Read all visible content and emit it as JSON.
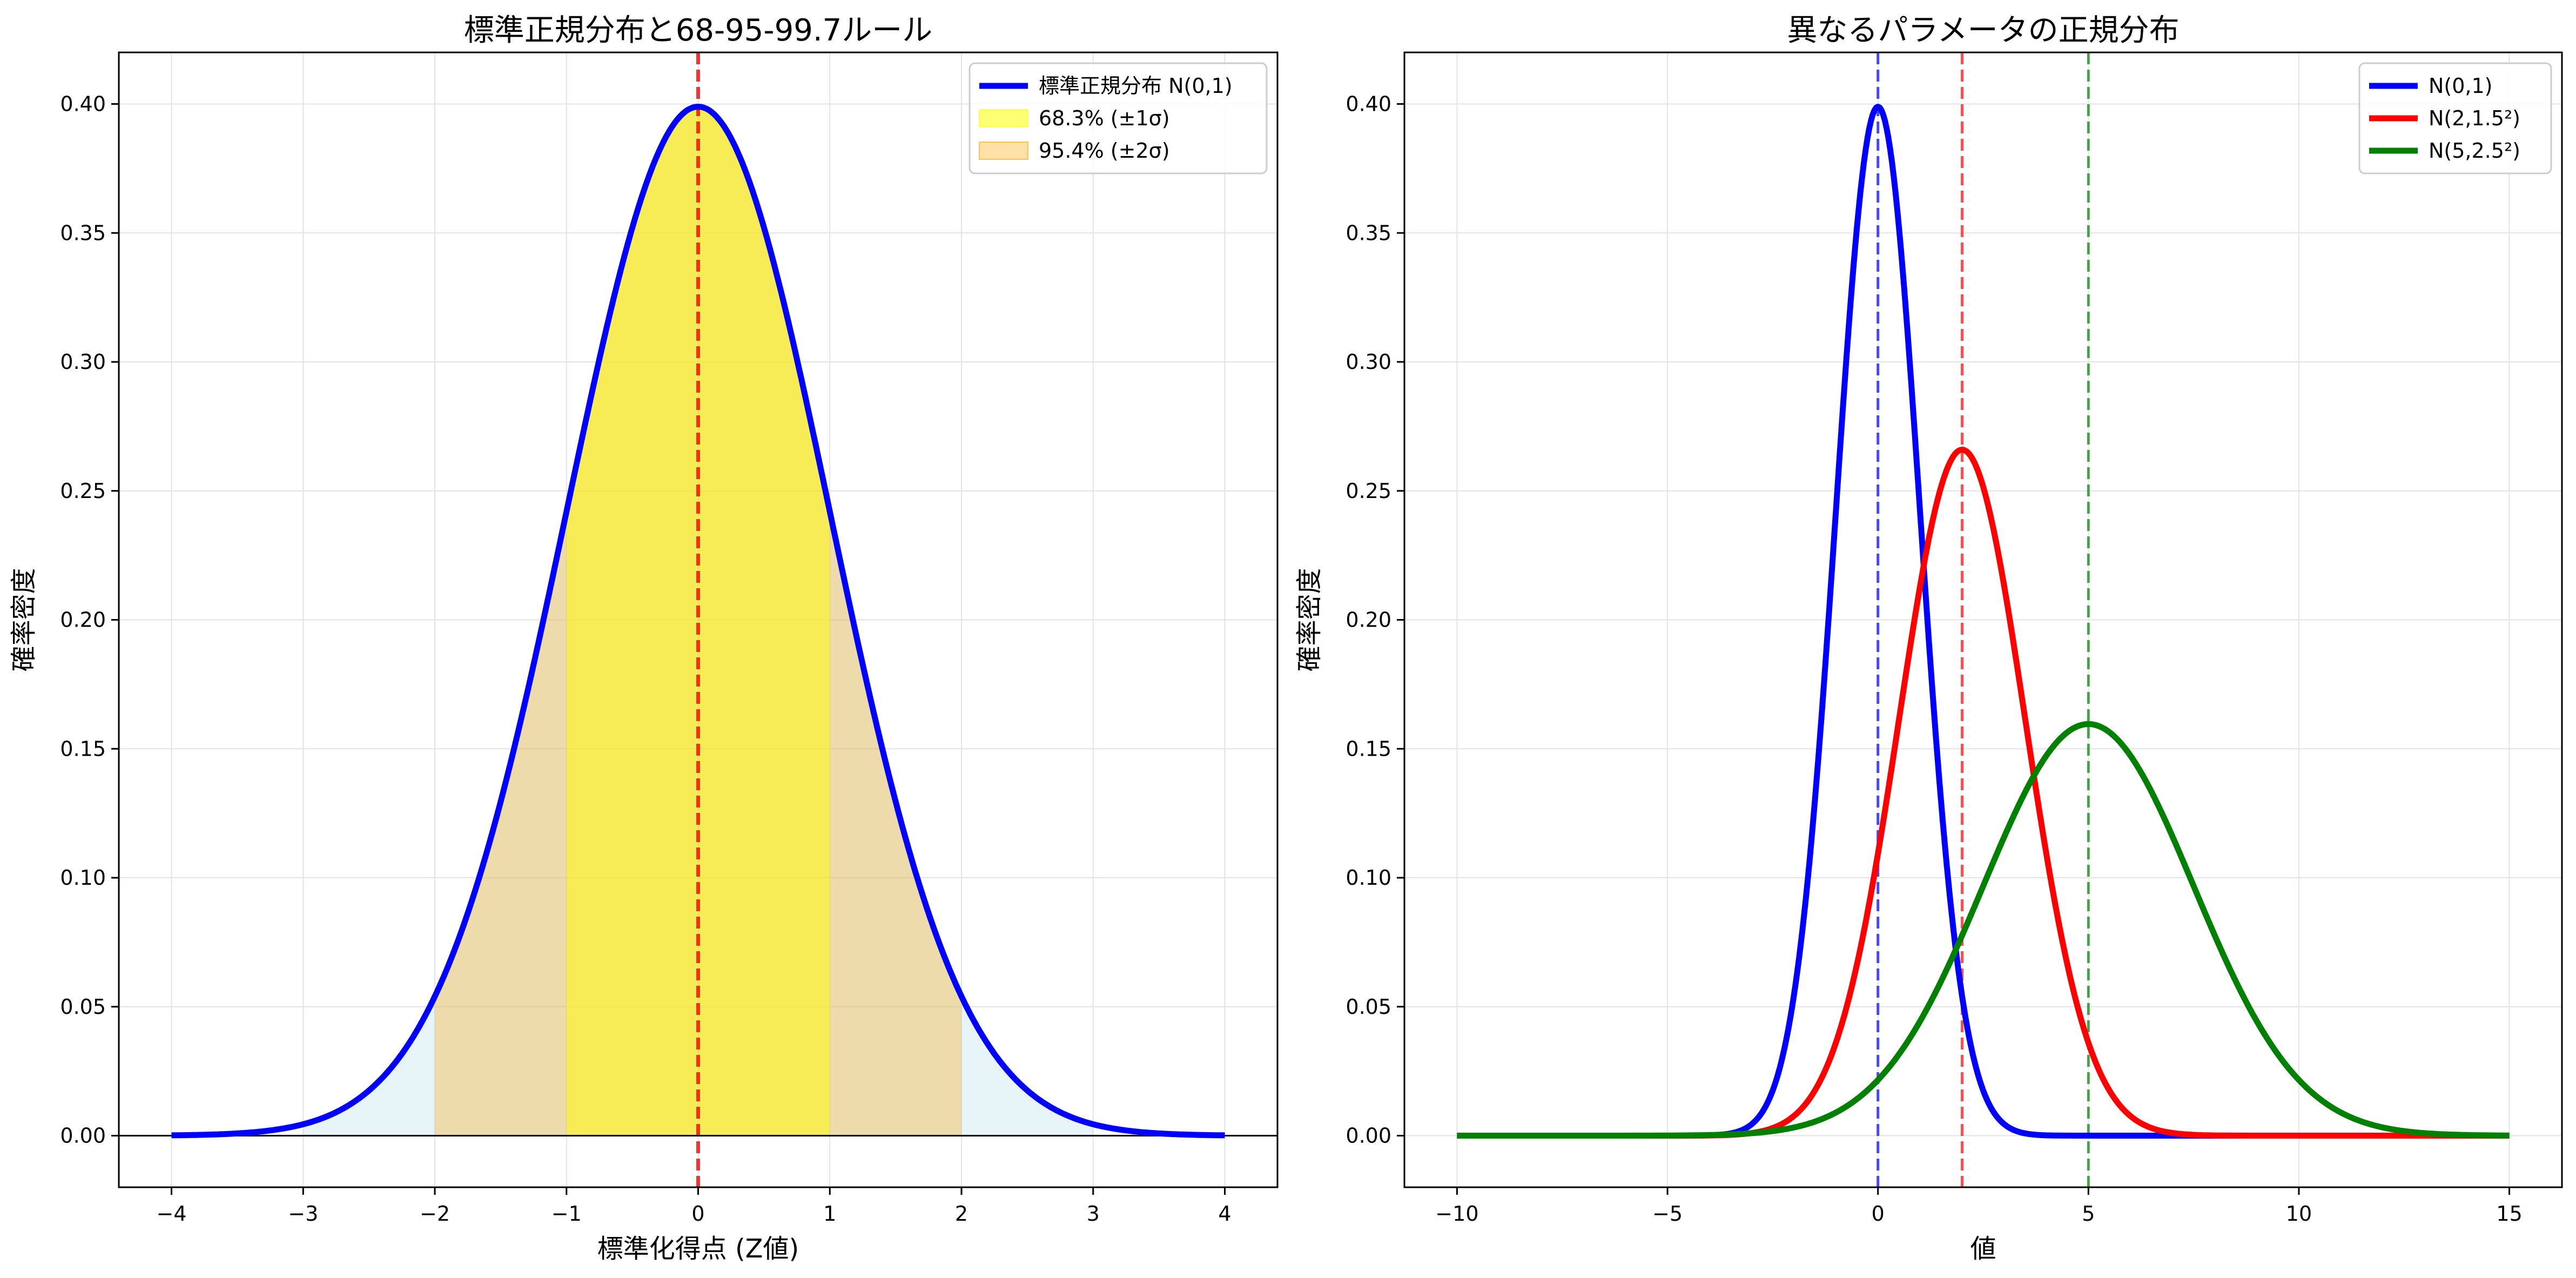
{
  "chart_data": [
    {
      "type": "line",
      "title": "標準正規分布と68-95-99.7ルール",
      "xlabel": "標準化得点 (Z値)",
      "ylabel": "確率密度",
      "xlim": [
        -4.4,
        4.4
      ],
      "ylim": [
        -0.02,
        0.42
      ],
      "xticks": [
        -4,
        -3,
        -2,
        -1,
        0,
        1,
        2,
        3,
        4
      ],
      "yticks": [
        0.0,
        0.05,
        0.1,
        0.15,
        0.2,
        0.25,
        0.3,
        0.35,
        0.4
      ],
      "xtick_labels": [
        "−4",
        "−3",
        "−2",
        "−1",
        "0",
        "1",
        "2",
        "3",
        "4"
      ],
      "ytick_labels": [
        "0.00",
        "0.05",
        "0.10",
        "0.15",
        "0.20",
        "0.25",
        "0.30",
        "0.35",
        "0.40"
      ],
      "grid": true,
      "legend_position": "top-right",
      "series": [
        {
          "name": "標準正規分布 N(0,1)",
          "mean": 0,
          "sd": 1,
          "x_range": [
            -4,
            4
          ],
          "peak_density": 0.399,
          "color": "#0000ff"
        }
      ],
      "shaded_regions": [
        {
          "name": "68.3% (±1σ)",
          "x_range": [
            -1,
            1
          ],
          "color": "#ffff00"
        },
        {
          "name": "95.4% (±2σ)",
          "x_range": [
            -2,
            2
          ],
          "color": "#ffa500"
        },
        {
          "x_range": [
            -3,
            3
          ],
          "color": "#add8e6"
        }
      ],
      "reference_lines": [
        {
          "orientation": "vertical",
          "x": 0,
          "color": "#ff0000",
          "style": "dashed"
        },
        {
          "orientation": "horizontal",
          "y": 0,
          "color": "#000000",
          "style": "solid"
        }
      ]
    },
    {
      "type": "line",
      "title": "異なるパラメータの正規分布",
      "xlabel": "値",
      "ylabel": "確率密度",
      "xlim": [
        -11.25,
        16.25
      ],
      "ylim": [
        -0.02,
        0.42
      ],
      "xticks": [
        -10,
        -5,
        0,
        5,
        10,
        15
      ],
      "yticks": [
        0.0,
        0.05,
        0.1,
        0.15,
        0.2,
        0.25,
        0.3,
        0.35,
        0.4
      ],
      "xtick_labels": [
        "−10",
        "−5",
        "0",
        "5",
        "10",
        "15"
      ],
      "ytick_labels": [
        "0.00",
        "0.05",
        "0.10",
        "0.15",
        "0.20",
        "0.25",
        "0.30",
        "0.35",
        "0.40"
      ],
      "grid": true,
      "legend_position": "top-right",
      "series": [
        {
          "name": "N(0,1)",
          "mean": 0,
          "sd": 1,
          "x_range": [
            -10,
            15
          ],
          "peak_density": 0.399,
          "color": "#0000ff"
        },
        {
          "name": "N(2,1.5²)",
          "mean": 2,
          "sd": 1.5,
          "x_range": [
            -10,
            15
          ],
          "peak_density": 0.266,
          "color": "#ff0000"
        },
        {
          "name": "N(5,2.5²)",
          "mean": 5,
          "sd": 2.5,
          "x_range": [
            -10,
            15
          ],
          "peak_density": 0.16,
          "color": "#008000"
        }
      ],
      "reference_lines": [
        {
          "orientation": "vertical",
          "x": 0,
          "color": "#0000ff",
          "style": "dashed"
        },
        {
          "orientation": "vertical",
          "x": 2,
          "color": "#ff0000",
          "style": "dashed"
        },
        {
          "orientation": "vertical",
          "x": 5,
          "color": "#008000",
          "style": "dashed"
        }
      ]
    }
  ]
}
